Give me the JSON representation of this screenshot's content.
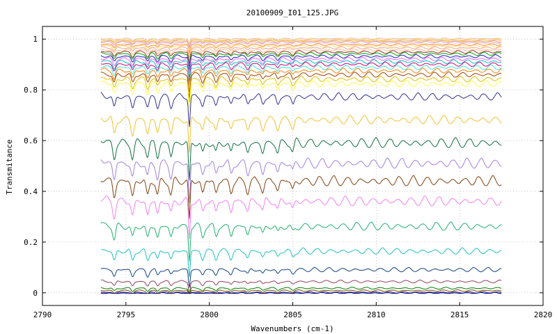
{
  "chart_data": {
    "type": "line",
    "title": "20100909_I01_125.JPG",
    "xlabel": "Wavenumbers (cm-1)",
    "ylabel": "Transmitance",
    "xlim": [
      2790,
      2820
    ],
    "ylim": [
      -0.05,
      1.05
    ],
    "x_range": [
      2793.5,
      2817.5
    ],
    "xticks": [
      2790,
      2795,
      2800,
      2805,
      2810,
      2815,
      2820
    ],
    "xtick_labels": [
      "2790",
      "2795",
      "2800",
      "2805",
      "2810",
      "2815",
      "2820"
    ],
    "yticks": [
      0,
      0.2,
      0.4,
      0.6,
      0.8,
      1
    ],
    "ytick_labels": [
      "0",
      "0.2",
      "0.4",
      "0.6",
      "0.8",
      "1"
    ],
    "grid": true,
    "legend": "none",
    "absorption_lines_cm1": [
      2794.3,
      2795.4,
      2796.3,
      2796.9,
      2797.7,
      2798.8,
      2799.6,
      2800.4,
      2801.3,
      2802.3,
      2803.2,
      2804.1,
      2805.0
    ],
    "series": [
      {
        "baseline": 1.003,
        "color": "#ffb0a0"
      },
      {
        "baseline": 1.0,
        "color": "#e8e8a0"
      },
      {
        "baseline": 0.997,
        "color": "#f0c040"
      },
      {
        "baseline": 0.993,
        "color": "#ffb060"
      },
      {
        "baseline": 0.99,
        "color": "#d0a0ff"
      },
      {
        "baseline": 0.985,
        "color": "#ffd0c0"
      },
      {
        "baseline": 0.98,
        "color": "#ff9040"
      },
      {
        "baseline": 0.975,
        "color": "#ffe060"
      },
      {
        "baseline": 0.968,
        "color": "#f0a0a0"
      },
      {
        "baseline": 0.96,
        "color": "#ffc080"
      },
      {
        "baseline": 0.952,
        "color": "#a03030"
      },
      {
        "baseline": 0.945,
        "color": "#00a000"
      },
      {
        "baseline": 0.935,
        "color": "#2020c0"
      },
      {
        "baseline": 0.925,
        "color": "#ff60ff"
      },
      {
        "baseline": 0.915,
        "color": "#00c0c0"
      },
      {
        "baseline": 0.905,
        "color": "#d00080"
      },
      {
        "baseline": 0.893,
        "color": "#40e0e0"
      },
      {
        "baseline": 0.88,
        "color": "#ff8000"
      },
      {
        "baseline": 0.865,
        "color": "#a04000"
      },
      {
        "baseline": 0.848,
        "color": "#e0c000"
      },
      {
        "baseline": 0.83,
        "color": "#ffff40"
      },
      {
        "baseline": 0.78,
        "color": "#303090"
      },
      {
        "baseline": 0.69,
        "color": "#f0c030"
      },
      {
        "baseline": 0.6,
        "color": "#107040"
      },
      {
        "baseline": 0.52,
        "color": "#a080e0"
      },
      {
        "baseline": 0.45,
        "color": "#804010"
      },
      {
        "baseline": 0.37,
        "color": "#f080f0"
      },
      {
        "baseline": 0.27,
        "color": "#20b070"
      },
      {
        "baseline": 0.17,
        "color": "#20c0c0"
      },
      {
        "baseline": 0.095,
        "color": "#104080"
      },
      {
        "baseline": 0.047,
        "color": "#904060"
      },
      {
        "baseline": 0.02,
        "color": "#008000"
      },
      {
        "baseline": 0.01,
        "color": "#804000"
      },
      {
        "baseline": 0.003,
        "color": "#202080"
      },
      {
        "baseline": 0.0,
        "color": "#000080"
      }
    ]
  }
}
